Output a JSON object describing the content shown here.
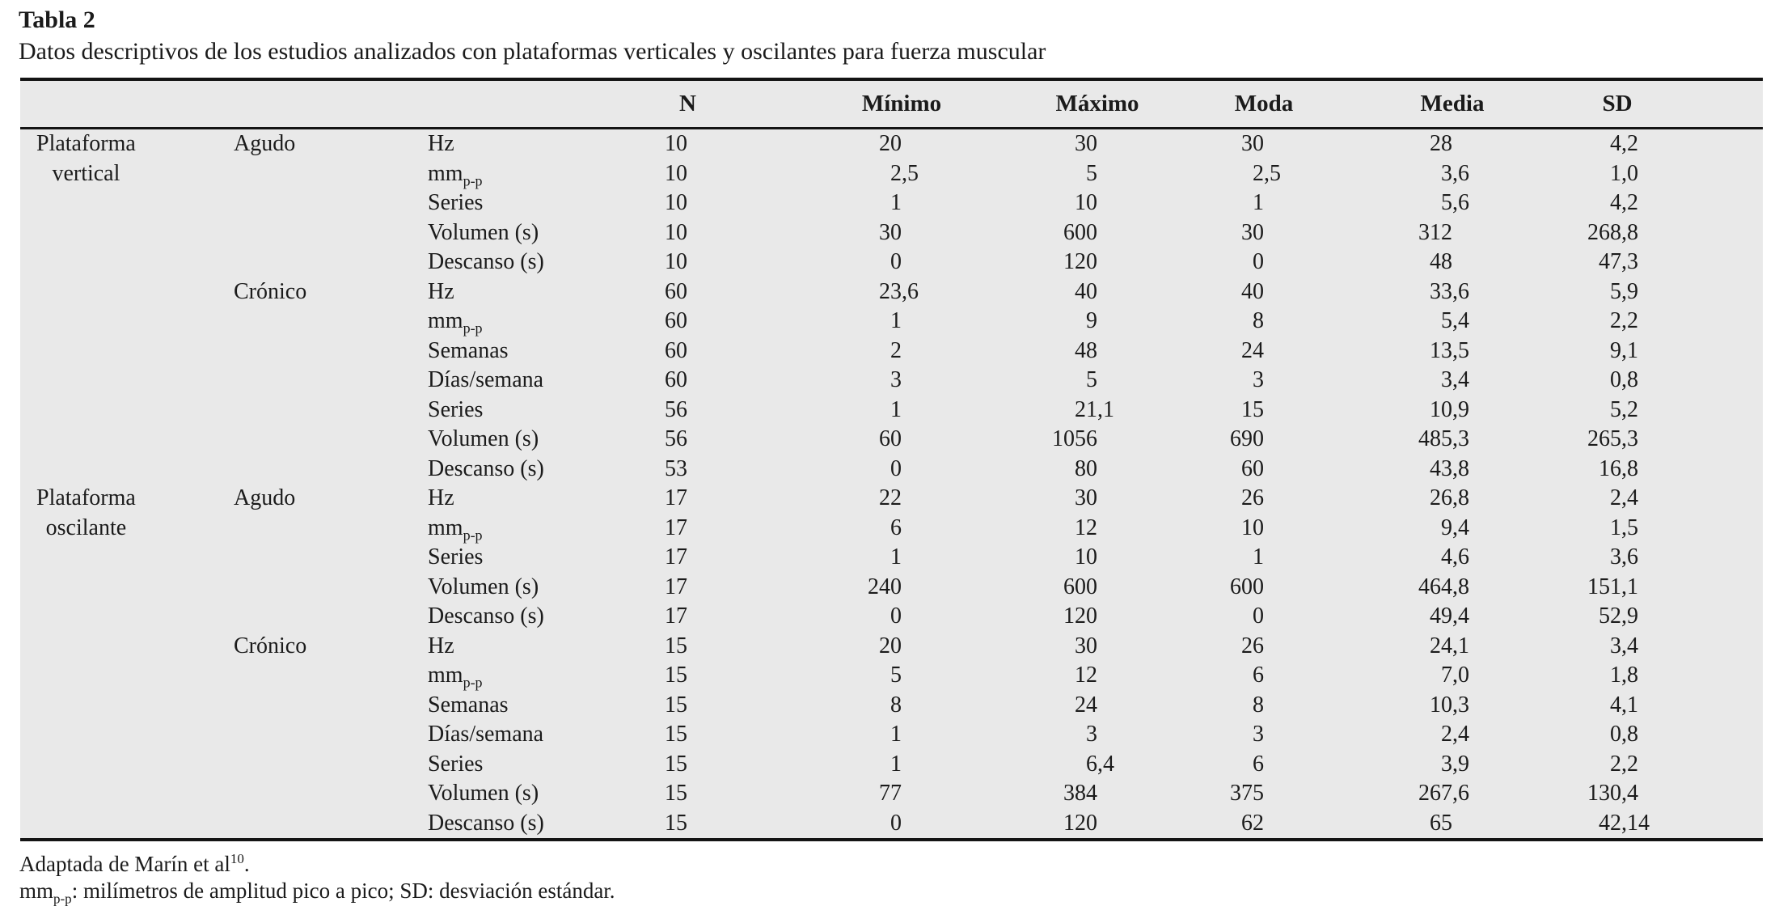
{
  "page": {
    "title": "Tabla 2",
    "subtitle": "Datos descriptivos de los estudios analizados con plataformas verticales y oscilantes para fuerza muscular",
    "footnote1": {
      "text": "Adaptada de Marín et al",
      "sup": "10",
      "period": "."
    },
    "footnote2": {
      "pre": "mm",
      "sub": "p-p",
      "post": ": milímetros de amplitud pico a pico; SD: desviación estándar."
    }
  },
  "table": {
    "columns": [
      "N",
      "Mínimo",
      "Máximo",
      "Moda",
      "Media",
      "SD"
    ],
    "groups": [
      {
        "platform_lines": [
          "Plataforma",
          "vertical"
        ],
        "conditions": [
          {
            "label": "Agudo",
            "rows": [
              {
                "variable": "Hz",
                "values": [
                  "10",
                  "20",
                  "30",
                  "30",
                  "28",
                  "4,2"
                ]
              },
              {
                "variable": "mm",
                "sub": "p-p",
                "values": [
                  "10",
                  "2,5",
                  "5",
                  "2,5",
                  "3,6",
                  "1,0"
                ]
              },
              {
                "variable": "Series",
                "values": [
                  "10",
                  "1",
                  "10",
                  "1",
                  "5,6",
                  "4,2"
                ]
              },
              {
                "variable": "Volumen (s)",
                "values": [
                  "10",
                  "30",
                  "600",
                  "30",
                  "312",
                  "268,8"
                ]
              },
              {
                "variable": "Descanso (s)",
                "values": [
                  "10",
                  "0",
                  "120",
                  "0",
                  "48",
                  "47,3"
                ]
              }
            ]
          },
          {
            "label": "Crónico",
            "rows": [
              {
                "variable": "Hz",
                "values": [
                  "60",
                  "23,6",
                  "40",
                  "40",
                  "33,6",
                  "5,9"
                ]
              },
              {
                "variable": "mm",
                "sub": "p-p",
                "values": [
                  "60",
                  "1",
                  "9",
                  "8",
                  "5,4",
                  "2,2"
                ]
              },
              {
                "variable": "Semanas",
                "values": [
                  "60",
                  "2",
                  "48",
                  "24",
                  "13,5",
                  "9,1"
                ]
              },
              {
                "variable": "Días/semana",
                "values": [
                  "60",
                  "3",
                  "5",
                  "3",
                  "3,4",
                  "0,8"
                ]
              },
              {
                "variable": "Series",
                "values": [
                  "56",
                  "1",
                  "21,1",
                  "15",
                  "10,9",
                  "5,2"
                ]
              },
              {
                "variable": "Volumen (s)",
                "values": [
                  "56",
                  "60",
                  "1056",
                  "690",
                  "485,3",
                  "265,3"
                ]
              },
              {
                "variable": "Descanso (s)",
                "values": [
                  "53",
                  "0",
                  "80",
                  "60",
                  "43,8",
                  "16,8"
                ]
              }
            ]
          }
        ]
      },
      {
        "platform_lines": [
          "Plataforma",
          "oscilante"
        ],
        "conditions": [
          {
            "label": "Agudo",
            "rows": [
              {
                "variable": "Hz",
                "values": [
                  "17",
                  "22",
                  "30",
                  "26",
                  "26,8",
                  "2,4"
                ]
              },
              {
                "variable": "mm",
                "sub": "p-p",
                "values": [
                  "17",
                  "6",
                  "12",
                  "10",
                  "9,4",
                  "1,5"
                ]
              },
              {
                "variable": "Series",
                "values": [
                  "17",
                  "1",
                  "10",
                  "1",
                  "4,6",
                  "3,6"
                ]
              },
              {
                "variable": "Volumen (s)",
                "values": [
                  "17",
                  "240",
                  "600",
                  "600",
                  "464,8",
                  "151,1"
                ]
              },
              {
                "variable": "Descanso (s)",
                "values": [
                  "17",
                  "0",
                  "120",
                  "0",
                  "49,4",
                  "52,9"
                ]
              }
            ]
          },
          {
            "label": "Crónico",
            "rows": [
              {
                "variable": "Hz",
                "values": [
                  "15",
                  "20",
                  "30",
                  "26",
                  "24,1",
                  "3,4"
                ]
              },
              {
                "variable": "mm",
                "sub": "p-p",
                "values": [
                  "15",
                  "5",
                  "12",
                  "6",
                  "7,0",
                  "1,8"
                ]
              },
              {
                "variable": "Semanas",
                "values": [
                  "15",
                  "8",
                  "24",
                  "8",
                  "10,3",
                  "4,1"
                ]
              },
              {
                "variable": "Días/semana",
                "values": [
                  "15",
                  "1",
                  "3",
                  "3",
                  "2,4",
                  "0,8"
                ]
              },
              {
                "variable": "Series",
                "values": [
                  "15",
                  "1",
                  "6,4",
                  "6",
                  "3,9",
                  "2,2"
                ]
              },
              {
                "variable": "Volumen (s)",
                "values": [
                  "15",
                  "77",
                  "384",
                  "375",
                  "267,6",
                  "130,4"
                ]
              },
              {
                "variable": "Descanso (s)",
                "values": [
                  "15",
                  "0",
                  "120",
                  "62",
                  "65",
                  "42,14"
                ]
              }
            ]
          }
        ]
      }
    ]
  }
}
